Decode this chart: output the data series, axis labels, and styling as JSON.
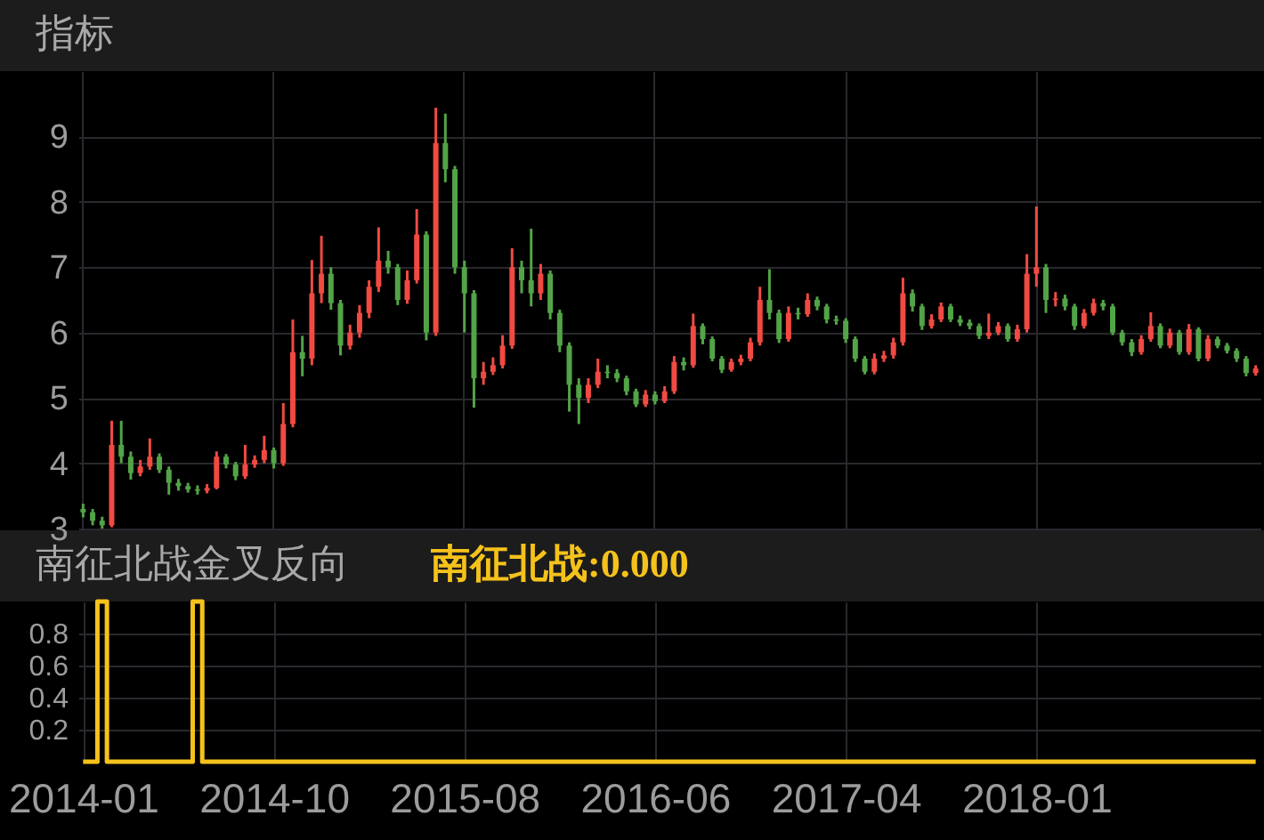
{
  "chart_data": [
    {
      "type": "candlestick",
      "title": "指标",
      "grid": true,
      "tick_labels": "y",
      "ylim": [
        3,
        10
      ],
      "yticks": [
        3,
        4,
        5,
        6,
        7,
        8,
        9
      ],
      "categories": [
        "2014-01",
        null,
        null,
        null,
        null,
        null,
        null,
        null,
        null,
        null,
        null,
        null,
        null,
        null,
        null,
        null,
        null,
        null,
        null,
        null,
        "2014-10",
        null,
        null,
        null,
        null,
        null,
        null,
        null,
        null,
        null,
        null,
        null,
        null,
        null,
        null,
        null,
        null,
        null,
        null,
        null,
        "2015-08",
        null,
        null,
        null,
        null,
        null,
        null,
        null,
        null,
        null,
        null,
        null,
        null,
        null,
        null,
        null,
        null,
        null,
        null,
        null,
        "2016-06",
        null,
        null,
        null,
        null,
        null,
        null,
        null,
        null,
        null,
        null,
        null,
        null,
        null,
        null,
        null,
        null,
        null,
        null,
        null,
        "2017-04",
        null,
        null,
        null,
        null,
        null,
        null,
        null,
        null,
        null,
        null,
        null,
        null,
        null,
        null,
        null,
        null,
        null,
        null,
        null,
        "2018-01",
        null,
        null,
        null,
        null,
        null,
        null,
        null,
        null,
        null,
        null,
        null,
        null,
        null,
        null,
        null,
        null,
        null,
        null,
        null,
        null,
        null,
        null,
        null
      ],
      "ohlc": [
        [
          3.3,
          3.38,
          3.17,
          3.25
        ],
        [
          3.25,
          3.3,
          3.05,
          3.12
        ],
        [
          3.12,
          3.18,
          3.0,
          3.05
        ],
        [
          3.05,
          4.65,
          3.02,
          4.28
        ],
        [
          4.28,
          4.65,
          4.0,
          4.1
        ],
        [
          4.1,
          4.18,
          3.75,
          3.85
        ],
        [
          3.85,
          4.05,
          3.8,
          3.95
        ],
        [
          3.95,
          4.38,
          3.9,
          4.1
        ],
        [
          4.1,
          4.15,
          3.85,
          3.9
        ],
        [
          3.9,
          3.95,
          3.52,
          3.7
        ],
        [
          3.7,
          3.76,
          3.58,
          3.65
        ],
        [
          3.65,
          3.7,
          3.55,
          3.6
        ],
        [
          3.6,
          3.66,
          3.52,
          3.58
        ],
        [
          3.58,
          3.68,
          3.54,
          3.62
        ],
        [
          3.62,
          4.18,
          3.6,
          4.1
        ],
        [
          4.1,
          4.14,
          3.92,
          3.98
        ],
        [
          3.98,
          4.02,
          3.74,
          3.8
        ],
        [
          3.8,
          4.28,
          3.76,
          3.98
        ],
        [
          3.98,
          4.12,
          3.93,
          4.05
        ],
        [
          4.05,
          4.42,
          4.0,
          4.2
        ],
        [
          4.2,
          4.24,
          3.92,
          4.0
        ],
        [
          4.0,
          4.92,
          3.96,
          4.6
        ],
        [
          4.6,
          6.2,
          4.55,
          5.7
        ],
        [
          5.7,
          5.95,
          5.33,
          5.6
        ],
        [
          5.6,
          7.11,
          5.5,
          6.6
        ],
        [
          6.6,
          7.48,
          6.45,
          6.9
        ],
        [
          6.9,
          7.0,
          6.35,
          6.45
        ],
        [
          6.45,
          6.5,
          5.65,
          5.8
        ],
        [
          5.8,
          6.12,
          5.74,
          6.0
        ],
        [
          6.0,
          6.42,
          5.92,
          6.3
        ],
        [
          6.3,
          6.8,
          6.22,
          6.7
        ],
        [
          6.7,
          7.61,
          6.62,
          7.1
        ],
        [
          7.1,
          7.25,
          6.9,
          7.0
        ],
        [
          7.0,
          7.05,
          6.42,
          6.5
        ],
        [
          6.5,
          6.95,
          6.44,
          6.8
        ],
        [
          6.8,
          7.89,
          6.75,
          7.5
        ],
        [
          7.5,
          7.55,
          5.88,
          6.0
        ],
        [
          6.0,
          9.44,
          5.95,
          8.9
        ],
        [
          8.9,
          9.35,
          8.3,
          8.5
        ],
        [
          8.5,
          8.55,
          6.9,
          7.0
        ],
        [
          7.0,
          7.1,
          6.0,
          6.6
        ],
        [
          6.6,
          6.65,
          4.85,
          5.3
        ],
        [
          5.3,
          5.55,
          5.2,
          5.4
        ],
        [
          5.4,
          5.62,
          5.35,
          5.5
        ],
        [
          5.5,
          5.96,
          5.45,
          5.8
        ],
        [
          5.8,
          7.29,
          5.75,
          7.0
        ],
        [
          7.0,
          7.1,
          6.6,
          6.8
        ],
        [
          6.8,
          7.59,
          6.4,
          6.6
        ],
        [
          6.6,
          7.05,
          6.5,
          6.9
        ],
        [
          6.9,
          6.95,
          6.2,
          6.3
        ],
        [
          6.3,
          6.35,
          5.7,
          5.8
        ],
        [
          5.8,
          5.85,
          4.79,
          5.2
        ],
        [
          5.2,
          5.3,
          4.6,
          5.0
        ],
        [
          5.0,
          5.3,
          4.92,
          5.2
        ],
        [
          5.2,
          5.6,
          5.15,
          5.4
        ],
        [
          5.4,
          5.5,
          5.3,
          5.38
        ],
        [
          5.38,
          5.44,
          5.24,
          5.3
        ],
        [
          5.3,
          5.34,
          5.04,
          5.1
        ],
        [
          5.1,
          5.14,
          4.86,
          4.9
        ],
        [
          4.9,
          5.12,
          4.86,
          5.05
        ],
        [
          5.05,
          5.1,
          4.9,
          4.95
        ],
        [
          4.95,
          5.18,
          4.92,
          5.1
        ],
        [
          5.1,
          5.64,
          5.06,
          5.55
        ],
        [
          5.55,
          5.62,
          5.42,
          5.5
        ],
        [
          5.5,
          6.29,
          5.46,
          6.1
        ],
        [
          6.1,
          6.14,
          5.82,
          5.9
        ],
        [
          5.9,
          5.94,
          5.56,
          5.6
        ],
        [
          5.6,
          5.64,
          5.38,
          5.43
        ],
        [
          5.43,
          5.6,
          5.4,
          5.55
        ],
        [
          5.55,
          5.66,
          5.5,
          5.6
        ],
        [
          5.6,
          5.92,
          5.56,
          5.85
        ],
        [
          5.85,
          6.7,
          5.8,
          6.5
        ],
        [
          6.5,
          6.97,
          6.2,
          6.3
        ],
        [
          6.3,
          6.35,
          5.84,
          5.9
        ],
        [
          5.9,
          6.4,
          5.86,
          6.3
        ],
        [
          6.3,
          6.38,
          6.2,
          6.28
        ],
        [
          6.28,
          6.6,
          6.24,
          6.5
        ],
        [
          6.5,
          6.55,
          6.34,
          6.4
        ],
        [
          6.4,
          6.44,
          6.14,
          6.2
        ],
        [
          6.2,
          6.26,
          6.12,
          6.18
        ],
        [
          6.18,
          6.22,
          5.84,
          5.9
        ],
        [
          5.9,
          5.94,
          5.55,
          5.6
        ],
        [
          5.6,
          5.64,
          5.36,
          5.4
        ],
        [
          5.4,
          5.68,
          5.36,
          5.6
        ],
        [
          5.6,
          5.72,
          5.55,
          5.65
        ],
        [
          5.65,
          5.92,
          5.6,
          5.85
        ],
        [
          5.85,
          6.84,
          5.8,
          6.6
        ],
        [
          6.6,
          6.66,
          6.32,
          6.4
        ],
        [
          6.4,
          6.44,
          6.04,
          6.1
        ],
        [
          6.1,
          6.28,
          6.06,
          6.2
        ],
        [
          6.2,
          6.46,
          6.16,
          6.4
        ],
        [
          6.4,
          6.44,
          6.16,
          6.2
        ],
        [
          6.2,
          6.26,
          6.1,
          6.15
        ],
        [
          6.15,
          6.2,
          6.05,
          6.1
        ],
        [
          6.1,
          6.14,
          5.9,
          5.95
        ],
        [
          5.95,
          6.29,
          5.9,
          6.0
        ],
        [
          6.0,
          6.16,
          5.96,
          6.1
        ],
        [
          6.1,
          6.14,
          5.86,
          5.9
        ],
        [
          5.9,
          6.12,
          5.86,
          6.05
        ],
        [
          6.05,
          7.2,
          6.0,
          6.9
        ],
        [
          6.9,
          7.93,
          6.7,
          7.0
        ],
        [
          7.0,
          7.05,
          6.3,
          6.5
        ],
        [
          6.5,
          6.62,
          6.4,
          6.52
        ],
        [
          6.52,
          6.58,
          6.34,
          6.4
        ],
        [
          6.4,
          6.44,
          6.04,
          6.1
        ],
        [
          6.1,
          6.36,
          6.06,
          6.3
        ],
        [
          6.3,
          6.52,
          6.26,
          6.45
        ],
        [
          6.45,
          6.5,
          6.34,
          6.4
        ],
        [
          6.4,
          6.44,
          5.96,
          6.0
        ],
        [
          6.0,
          6.04,
          5.8,
          5.85
        ],
        [
          5.85,
          5.9,
          5.64,
          5.7
        ],
        [
          5.7,
          5.96,
          5.66,
          5.9
        ],
        [
          5.9,
          6.31,
          5.86,
          6.1
        ],
        [
          6.1,
          6.14,
          5.76,
          5.8
        ],
        [
          5.8,
          6.06,
          5.76,
          6.0
        ],
        [
          6.0,
          6.04,
          5.66,
          5.7
        ],
        [
          5.7,
          6.13,
          5.66,
          6.05
        ],
        [
          6.05,
          6.08,
          5.56,
          5.6
        ],
        [
          5.6,
          5.96,
          5.56,
          5.9
        ],
        [
          5.9,
          5.94,
          5.76,
          5.8
        ],
        [
          5.8,
          5.84,
          5.68,
          5.72
        ],
        [
          5.72,
          5.76,
          5.55,
          5.6
        ],
        [
          5.6,
          5.64,
          5.33,
          5.38
        ],
        [
          5.38,
          5.5,
          5.34,
          5.45
        ]
      ],
      "colors": [
        "#52a447",
        "#52a447",
        "#52a447",
        "#f04a42",
        "#52a447",
        "#52a447",
        "#f04a42",
        "#f04a42",
        "#52a447",
        "#52a447",
        "#52a447",
        "#52a447",
        "#52a447",
        "#f04a42",
        "#f04a42",
        "#52a447",
        "#52a447",
        "#f04a42",
        "#f04a42",
        "#f04a42",
        "#52a447",
        "#f04a42",
        "#f04a42",
        "#52a447",
        "#f04a42",
        "#f04a42",
        "#52a447",
        "#52a447",
        "#f04a42",
        "#f04a42",
        "#f04a42",
        "#f04a42",
        "#52a447",
        "#52a447",
        "#f04a42",
        "#f04a42",
        "#52a447",
        "#f04a42",
        "#52a447",
        "#52a447",
        "#52a447",
        "#52a447",
        "#f04a42",
        "#f04a42",
        "#f04a42",
        "#f04a42",
        "#52a447",
        "#52a447",
        "#f04a42",
        "#52a447",
        "#52a447",
        "#52a447",
        "#52a447",
        "#f04a42",
        "#f04a42",
        "#52a447",
        "#52a447",
        "#52a447",
        "#52a447",
        "#f04a42",
        "#52a447",
        "#f04a42",
        "#f04a42",
        "#52a447",
        "#f04a42",
        "#52a447",
        "#52a447",
        "#52a447",
        "#f04a42",
        "#f04a42",
        "#f04a42",
        "#f04a42",
        "#52a447",
        "#52a447",
        "#f04a42",
        "#52a447",
        "#f04a42",
        "#52a447",
        "#52a447",
        "#52a447",
        "#52a447",
        "#52a447",
        "#52a447",
        "#f04a42",
        "#f04a42",
        "#f04a42",
        "#f04a42",
        "#52a447",
        "#52a447",
        "#f04a42",
        "#f04a42",
        "#52a447",
        "#52a447",
        "#52a447",
        "#52a447",
        "#f04a42",
        "#f04a42",
        "#52a447",
        "#f04a42",
        "#f04a42",
        "#f04a42",
        "#52a447",
        "#f04a42",
        "#52a447",
        "#52a447",
        "#f04a42",
        "#f04a42",
        "#52a447",
        "#52a447",
        "#52a447",
        "#52a447",
        "#f04a42",
        "#f04a42",
        "#52a447",
        "#f04a42",
        "#52a447",
        "#f04a42",
        "#52a447",
        "#f04a42",
        "#52a447",
        "#52a447",
        "#52a447",
        "#52a447",
        "#f04a42"
      ]
    },
    {
      "type": "step",
      "title": "南征北战金叉反向",
      "grid": true,
      "legend": "top left",
      "ylim": [
        0,
        1
      ],
      "yticks": [
        0.2,
        0.4,
        0.6,
        0.8
      ],
      "categories": [
        "2014-01",
        null,
        null,
        null,
        null,
        null,
        null,
        null,
        null,
        null,
        null,
        null,
        null,
        null,
        null,
        null,
        null,
        null,
        null,
        null,
        "2014-10",
        null,
        null,
        null,
        null,
        null,
        null,
        null,
        null,
        null,
        null,
        null,
        null,
        null,
        null,
        null,
        null,
        null,
        null,
        null,
        "2015-08",
        null,
        null,
        null,
        null,
        null,
        null,
        null,
        null,
        null,
        null,
        null,
        null,
        null,
        null,
        null,
        null,
        null,
        null,
        null,
        "2016-06",
        null,
        null,
        null,
        null,
        null,
        null,
        null,
        null,
        null,
        null,
        null,
        null,
        null,
        null,
        null,
        null,
        null,
        null,
        null,
        "2017-04",
        null,
        null,
        null,
        null,
        null,
        null,
        null,
        null,
        null,
        null,
        null,
        null,
        null,
        null,
        null,
        null,
        null,
        null,
        null,
        "2018-01",
        null,
        null,
        null,
        null,
        null,
        null,
        null,
        null,
        null,
        null,
        null,
        null,
        null,
        null,
        null,
        null,
        null,
        null,
        null,
        null,
        null,
        null,
        null
      ],
      "series": [
        {
          "name": "南征北战:0.000",
          "color": "#f5c21b",
          "values": [
            0,
            0,
            1,
            0,
            0,
            0,
            0,
            0,
            0,
            0,
            0,
            0,
            1,
            0,
            0,
            0,
            0,
            0,
            0,
            0,
            0,
            0,
            0,
            0,
            0,
            0,
            0,
            0,
            0,
            0,
            0,
            0,
            0,
            0,
            0,
            0,
            0,
            0,
            0,
            0,
            0,
            0,
            0,
            0,
            0,
            0,
            0,
            0,
            0,
            0,
            0,
            0,
            0,
            0,
            0,
            0,
            0,
            0,
            0,
            0,
            0,
            0,
            0,
            0,
            0,
            0,
            0,
            0,
            0,
            0,
            0,
            0,
            0,
            0,
            0,
            0,
            0,
            0,
            0,
            0,
            0,
            0,
            0,
            0,
            0,
            0,
            0,
            0,
            0,
            0,
            0,
            0,
            0,
            0,
            0,
            0,
            0,
            0,
            0,
            0,
            0,
            0,
            0,
            0,
            0,
            0,
            0,
            0,
            0,
            0,
            0,
            0,
            0,
            0,
            0,
            0,
            0,
            0,
            0,
            0,
            0,
            0,
            0,
            0
          ]
        }
      ]
    }
  ]
}
